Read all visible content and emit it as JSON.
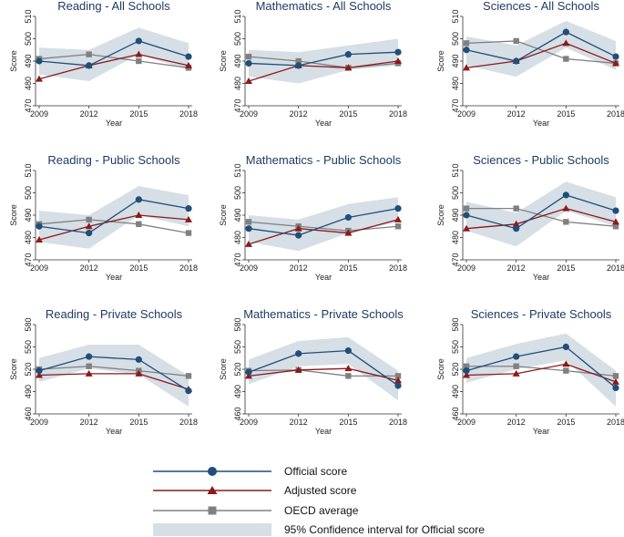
{
  "colors": {
    "official": "#1f4e79",
    "adjusted": "#8b1a1a",
    "oecd": "#808080",
    "ci": "#d6dee6",
    "title": "#1f3a64"
  },
  "legend": {
    "official": "Official score",
    "adjusted": "Adjusted score",
    "oecd": "OECD average",
    "ci": "95% Confidence interval for Official score"
  },
  "chart_data": [
    {
      "type": "line",
      "title": "Reading - All Schools",
      "xlabel": "Year",
      "ylabel": "Score",
      "x": [
        2009,
        2012,
        2015,
        2018
      ],
      "ylim": [
        470,
        510
      ],
      "yticks": [
        470,
        480,
        490,
        500,
        510
      ],
      "series": [
        {
          "name": "Official score",
          "values": [
            490,
            488,
            499,
            492
          ]
        },
        {
          "name": "Adjusted score",
          "values": [
            482,
            488,
            493,
            488
          ]
        },
        {
          "name": "OECD average",
          "values": [
            491,
            493,
            490,
            487
          ]
        }
      ],
      "ci_low": [
        484,
        481,
        493,
        486
      ],
      "ci_high": [
        496,
        495,
        505,
        498
      ]
    },
    {
      "type": "line",
      "title": "Mathematics - All Schools",
      "xlabel": "Year",
      "ylabel": "Score",
      "x": [
        2009,
        2012,
        2015,
        2018
      ],
      "ylim": [
        470,
        510
      ],
      "yticks": [
        470,
        480,
        490,
        500,
        510
      ],
      "series": [
        {
          "name": "Official score",
          "values": [
            489,
            488,
            493,
            494
          ]
        },
        {
          "name": "Adjusted score",
          "values": [
            481,
            488,
            487,
            490
          ]
        },
        {
          "name": "OECD average",
          "values": [
            492,
            490,
            487,
            489
          ]
        }
      ],
      "ci_low": [
        483,
        480,
        486,
        488
      ],
      "ci_high": [
        495,
        494,
        497,
        500
      ]
    },
    {
      "type": "line",
      "title": "Sciences - All Schools",
      "xlabel": "Year",
      "ylabel": "Score",
      "x": [
        2009,
        2012,
        2015,
        2018
      ],
      "ylim": [
        470,
        510
      ],
      "yticks": [
        470,
        480,
        490,
        500,
        510
      ],
      "series": [
        {
          "name": "Official score",
          "values": [
            495,
            490,
            503,
            492
          ]
        },
        {
          "name": "Adjusted score",
          "values": [
            487,
            490,
            498,
            489
          ]
        },
        {
          "name": "OECD average",
          "values": [
            498,
            499,
            491,
            489
          ]
        }
      ],
      "ci_low": [
        488,
        483,
        496,
        486
      ],
      "ci_high": [
        501,
        497,
        508,
        499
      ]
    },
    {
      "type": "line",
      "title": "Reading - Public Schools",
      "xlabel": "Year",
      "ylabel": "Score",
      "x": [
        2009,
        2012,
        2015,
        2018
      ],
      "ylim": [
        470,
        510
      ],
      "yticks": [
        470,
        480,
        490,
        500,
        510
      ],
      "series": [
        {
          "name": "Official score",
          "values": [
            485,
            482,
            497,
            493
          ]
        },
        {
          "name": "Adjusted score",
          "values": [
            479,
            485,
            490,
            488
          ]
        },
        {
          "name": "OECD average",
          "values": [
            486,
            488,
            486,
            482
          ]
        }
      ],
      "ci_low": [
        478,
        475,
        490,
        485
      ],
      "ci_high": [
        492,
        490,
        503,
        499
      ]
    },
    {
      "type": "line",
      "title": "Mathematics - Public Schools",
      "xlabel": "Year",
      "ylabel": "Score",
      "x": [
        2009,
        2012,
        2015,
        2018
      ],
      "ylim": [
        470,
        510
      ],
      "yticks": [
        470,
        480,
        490,
        500,
        510
      ],
      "series": [
        {
          "name": "Official score",
          "values": [
            484,
            481,
            489,
            493
          ]
        },
        {
          "name": "Adjusted score",
          "values": [
            477,
            484,
            482,
            488
          ]
        },
        {
          "name": "OECD average",
          "values": [
            487,
            485,
            483,
            485
          ]
        }
      ],
      "ci_low": [
        478,
        474,
        482,
        487
      ],
      "ci_high": [
        490,
        488,
        495,
        498
      ]
    },
    {
      "type": "line",
      "title": "Sciences - Public Schools",
      "xlabel": "Year",
      "ylabel": "Score",
      "x": [
        2009,
        2012,
        2015,
        2018
      ],
      "ylim": [
        470,
        510
      ],
      "yticks": [
        470,
        480,
        490,
        500,
        510
      ],
      "series": [
        {
          "name": "Official score",
          "values": [
            490,
            484,
            499,
            492
          ]
        },
        {
          "name": "Adjusted score",
          "values": [
            484,
            486,
            493,
            487
          ]
        },
        {
          "name": "OECD average",
          "values": [
            493,
            493,
            487,
            485
          ]
        }
      ],
      "ci_low": [
        483,
        476,
        492,
        485
      ],
      "ci_high": [
        496,
        491,
        505,
        498
      ]
    },
    {
      "type": "line",
      "title": "Reading - Private Schools",
      "xlabel": "Year",
      "ylabel": "Score",
      "x": [
        2009,
        2012,
        2015,
        2018
      ],
      "ylim": [
        460,
        580
      ],
      "yticks": [
        460,
        490,
        520,
        550,
        580
      ],
      "series": [
        {
          "name": "Official score",
          "values": [
            518,
            537,
            533,
            491
          ]
        },
        {
          "name": "Adjusted score",
          "values": [
            512,
            514,
            514,
            493
          ]
        },
        {
          "name": "OECD average",
          "values": [
            520,
            524,
            518,
            511
          ]
        }
      ],
      "ci_low": [
        503,
        521,
        513,
        470
      ],
      "ci_high": [
        535,
        553,
        553,
        511
      ]
    },
    {
      "type": "line",
      "title": "Mathematics - Private Schools",
      "xlabel": "Year",
      "ylabel": "Score",
      "x": [
        2009,
        2012,
        2015,
        2018
      ],
      "ylim": [
        460,
        580
      ],
      "yticks": [
        460,
        490,
        520,
        550,
        580
      ],
      "series": [
        {
          "name": "Official score",
          "values": [
            516,
            541,
            545,
            498
          ]
        },
        {
          "name": "Adjusted score",
          "values": [
            511,
            519,
            521,
            505
          ]
        },
        {
          "name": "OECD average",
          "values": [
            518,
            519,
            511,
            511
          ]
        }
      ],
      "ci_low": [
        500,
        524,
        527,
        478
      ],
      "ci_high": [
        533,
        558,
        563,
        518
      ]
    },
    {
      "type": "line",
      "title": "Sciences - Private Schools",
      "xlabel": "Year",
      "ylabel": "Score",
      "x": [
        2009,
        2012,
        2015,
        2018
      ],
      "ylim": [
        460,
        580
      ],
      "yticks": [
        460,
        490,
        520,
        550,
        580
      ],
      "series": [
        {
          "name": "Official score",
          "values": [
            518,
            537,
            550,
            495
          ]
        },
        {
          "name": "Adjusted score",
          "values": [
            512,
            514,
            527,
            503
          ]
        },
        {
          "name": "OECD average",
          "values": [
            524,
            524,
            518,
            511
          ]
        }
      ],
      "ci_low": [
        502,
        520,
        532,
        470
      ],
      "ci_high": [
        535,
        554,
        568,
        518
      ]
    }
  ]
}
